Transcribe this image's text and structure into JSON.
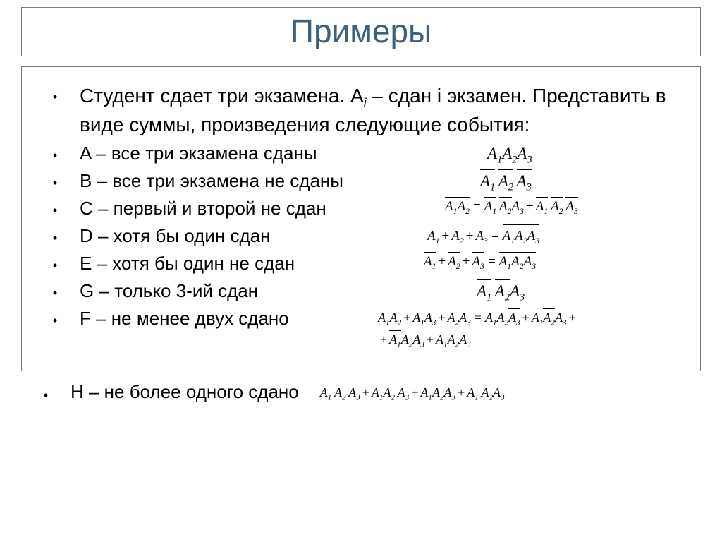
{
  "title": "Примеры",
  "intro_html": "Студент сдает три экзамена. A<span class='sub'>i</span> – сдан  i экзамен. Представить в виде суммы, произведения следующие события:",
  "items": [
    {
      "label": "A – все три экзамена сданы"
    },
    {
      "label": "B – все три экзамена не сданы"
    },
    {
      "label": "C – первый и второй   не сдан"
    },
    {
      "label": "D – хотя бы один сдан"
    },
    {
      "label": "E – хотя бы один не сдан"
    },
    {
      "label": "G – только 3-ий сдан"
    },
    {
      "label": "F – не менее двух сдано"
    }
  ],
  "last": "H – не более одного сдано",
  "formulas": {
    "A": "<span>A<span class='sub'>1</span>A<span class='sub'>2</span>A<span class='sub'>3</span></span>",
    "B": "<span class='ovl'>A<span class='sub'>1</span></span>&thinsp;<span class='ovl'>A<span class='sub'>2</span></span>&thinsp;<span class='ovl'>A<span class='sub'>3</span></span>",
    "C": "<span class='ovl'>A<span class='sub'>1</span></span><span class='ovl'>A<span class='sub'>2</span></span><span class='eq'>=</span><span class='ovl'>A<span class='sub'>1</span></span>&thinsp;<span class='ovl'>A<span class='sub'>2</span></span>A<span class='sub'>3</span><span class='op'>+</span><span class='ovl'>A<span class='sub'>1</span></span>&thinsp;<span class='ovl'>A<span class='sub'>2</span></span>&thinsp;<span class='ovl'>A<span class='sub'>3</span></span>",
    "D": "A<span class='sub'>1</span><span class='op'>+</span>A<span class='sub'>2</span><span class='op'>+</span>A<span class='sub'>3</span><span class='eq'>=</span><span class='ovl2'><span class='ovl'>A<span class='sub'>1</span></span><span class='ovl'>A<span class='sub'>2</span></span><span class='ovl'>A<span class='sub'>3</span></span></span>",
    "E": "<span class='ovl'>A<span class='sub'>1</span></span><span class='op'>+</span><span class='ovl'>A<span class='sub'>2</span></span><span class='op'>+</span><span class='ovl'>A<span class='sub'>3</span></span><span class='eq'>=</span><span class='ovl'>A<span class='sub'>1</span>A<span class='sub'>2</span>A<span class='sub'>3</span></span>",
    "G": "<span class='ovl'>A<span class='sub'>1</span></span>&thinsp;<span class='ovl'>A<span class='sub'>2</span></span>A<span class='sub'>3</span>",
    "F1": "A<span class='sub'>1</span>A<span class='sub'>2</span><span class='op'>+</span>A<span class='sub'>1</span>A<span class='sub'>3</span><span class='op'>+</span>A<span class='sub'>2</span>A<span class='sub'>3</span><span class='eq'>=</span>A<span class='sub'>1</span>A<span class='sub'>2</span><span class='ovl'>A<span class='sub'>3</span></span><span class='op'>+</span>A<span class='sub'>1</span><span class='ovl'>A<span class='sub'>2</span></span>A<span class='sub'>3</span><span class='op'>+</span>",
    "F2": "<span class='op'>+</span><span class='ovl'>A<span class='sub'>1</span></span>A<span class='sub'>2</span>A<span class='sub'>3</span><span class='op'>+</span>A<span class='sub'>1</span>A<span class='sub'>2</span>A<span class='sub'>3</span>",
    "H": "<span class='ovl'>A<span class='sub'>1</span></span>&thinsp;<span class='ovl'>A<span class='sub'>2</span></span>&thinsp;<span class='ovl'>A<span class='sub'>3</span></span><span class='op'>+</span>A<span class='sub'>1</span><span class='ovl'>A<span class='sub'>2</span></span>&thinsp;<span class='ovl'>A<span class='sub'>3</span></span><span class='op'>+</span><span class='ovl'>A<span class='sub'>1</span></span>A<span class='sub'>2</span><span class='ovl'>A<span class='sub'>3</span></span><span class='op'>+</span><span class='ovl'>A<span class='sub'>1</span></span>&thinsp;<span class='ovl'>A<span class='sub'>2</span></span>A<span class='sub'>3</span>"
  },
  "style": {
    "title_color": "#3f607f",
    "text_color": "#000000",
    "border_color": "#7a7a7a",
    "title_fontsize": 46,
    "body_fontsize": 26,
    "formula_fontsize": 23
  }
}
